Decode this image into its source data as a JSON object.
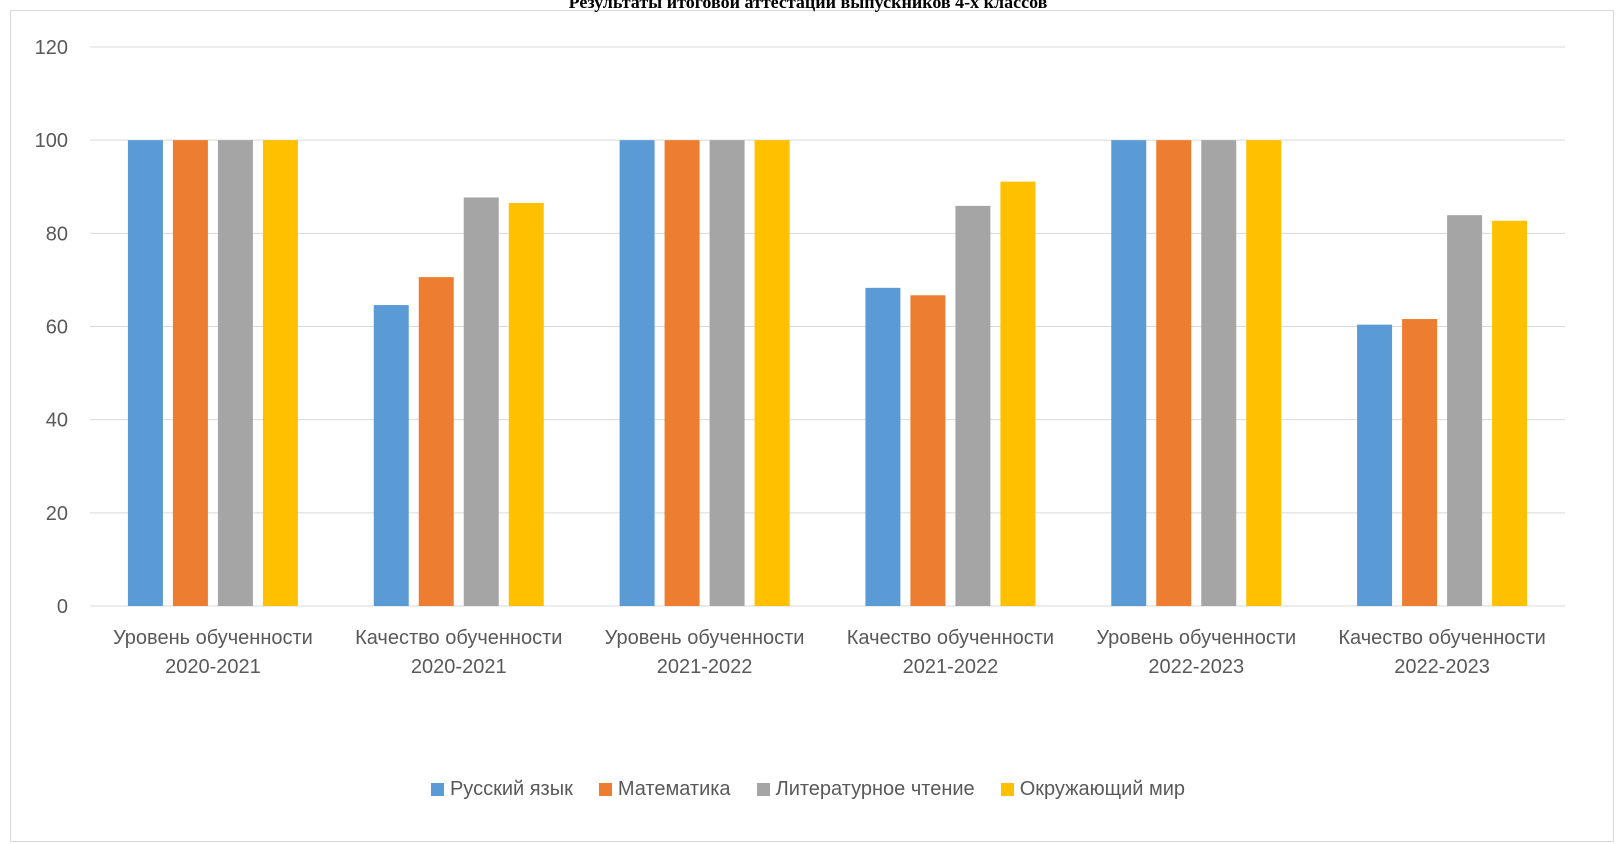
{
  "chart_data": {
    "type": "bar",
    "title": "Результаты итоговой аттестации выпускников 4-х классов",
    "xlabel": "",
    "ylabel": "",
    "ylim": [
      0,
      120
    ],
    "yticks": [
      0,
      20,
      40,
      60,
      80,
      100,
      120
    ],
    "grid": true,
    "legend_position": "bottom",
    "categories": [
      [
        "Уровень обученности",
        "2020-2021"
      ],
      [
        "Качество обученности",
        "2020-2021"
      ],
      [
        "Уровень обученности",
        "2021-2022"
      ],
      [
        "Качество обученности",
        "2021-2022"
      ],
      [
        "Уровень обученности",
        "2022-2023"
      ],
      [
        "Качество обученности",
        "2022-2023"
      ]
    ],
    "series": [
      {
        "name": "Русский язык",
        "color": "#5b9bd5",
        "values": [
          100,
          64.6,
          100,
          68.3,
          100,
          60.4
        ]
      },
      {
        "name": "Математика",
        "color": "#ed7d31",
        "values": [
          100,
          70.6,
          100,
          66.7,
          100,
          61.6
        ]
      },
      {
        "name": "Литературное чтение",
        "color": "#a5a5a5",
        "values": [
          100,
          87.7,
          100,
          85.9,
          100,
          83.9
        ]
      },
      {
        "name": "Окружающий мир",
        "color": "#ffc000",
        "values": [
          100,
          86.5,
          100,
          91.1,
          100,
          82.7
        ]
      }
    ]
  }
}
